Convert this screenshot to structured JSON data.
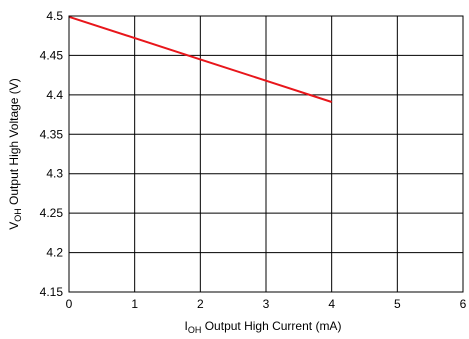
{
  "chart_data": {
    "type": "line",
    "xlabel": {
      "symbol": "I",
      "subscript": "OH",
      "text": " Output High Current (mA)"
    },
    "ylabel": {
      "symbol": "V",
      "subscript": "OH",
      "text": " Output High Voltage (V)"
    },
    "xlim": [
      0,
      6
    ],
    "ylim": [
      4.15,
      4.5
    ],
    "x_ticks": [
      0,
      1,
      2,
      3,
      4,
      5,
      6
    ],
    "y_ticks": [
      4.15,
      4.2,
      4.25,
      4.3,
      4.35,
      4.4,
      4.45,
      4.5
    ],
    "x_tick_labels": [
      "0",
      "1",
      "2",
      "3",
      "4",
      "5",
      "6"
    ],
    "y_tick_labels": [
      "4.15",
      "4.2",
      "4.25",
      "4.3",
      "4.35",
      "4.4",
      "4.45",
      "4.5"
    ],
    "grid": true,
    "series": [
      {
        "color": "#e8161b",
        "x": [
          0,
          1,
          2,
          3,
          4
        ],
        "y": [
          4.499,
          4.472,
          4.445,
          4.418,
          4.391
        ]
      }
    ]
  }
}
